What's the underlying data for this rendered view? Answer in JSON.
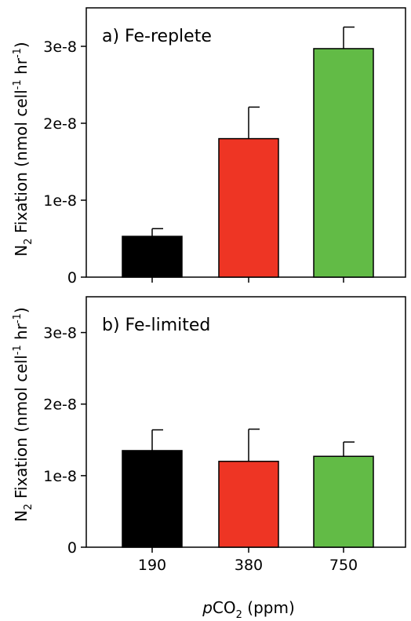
{
  "figure": {
    "ylabel_main": "N",
    "ylabel_sub": "2",
    "ylabel_rest": " Fixation (nmol cell",
    "ylabel_sup1": "-1",
    "ylabel_mid": " hr",
    "ylabel_sup2": "-1",
    "ylabel_end": ")",
    "xlabel_italic": "p",
    "xlabel_main": "CO",
    "xlabel_sub": "2",
    "xlabel_end": " (ppm)"
  },
  "colors": {
    "190": "#000000",
    "380": "#ee3524",
    "750": "#62bb46"
  },
  "chart_data": [
    {
      "type": "bar",
      "panel_label": "a) Fe-replete",
      "categories": [
        "190",
        "380",
        "750"
      ],
      "values": [
        5.3e-09,
        1.8e-08,
        2.97e-08
      ],
      "errors": [
        1e-09,
        4.1e-09,
        2.8e-09
      ],
      "ylim": [
        0,
        3.5e-08
      ],
      "yticks": [
        0,
        1e-08,
        2e-08,
        3e-08
      ],
      "ytick_labels": [
        "0",
        "1e-8",
        "2e-8",
        "3e-8"
      ],
      "xtick_labels": [
        "",
        "",
        ""
      ],
      "grid": false
    },
    {
      "type": "bar",
      "panel_label": "b) Fe-limited",
      "categories": [
        "190",
        "380",
        "750"
      ],
      "values": [
        1.35e-08,
        1.2e-08,
        1.27e-08
      ],
      "errors": [
        2.9e-09,
        4.5e-09,
        2e-09
      ],
      "ylim": [
        0,
        3.5e-08
      ],
      "yticks": [
        0,
        1e-08,
        2e-08,
        3e-08
      ],
      "ytick_labels": [
        "0",
        "1e-8",
        "2e-8",
        "3e-8"
      ],
      "xtick_labels": [
        "190",
        "380",
        "750"
      ],
      "grid": false
    }
  ]
}
